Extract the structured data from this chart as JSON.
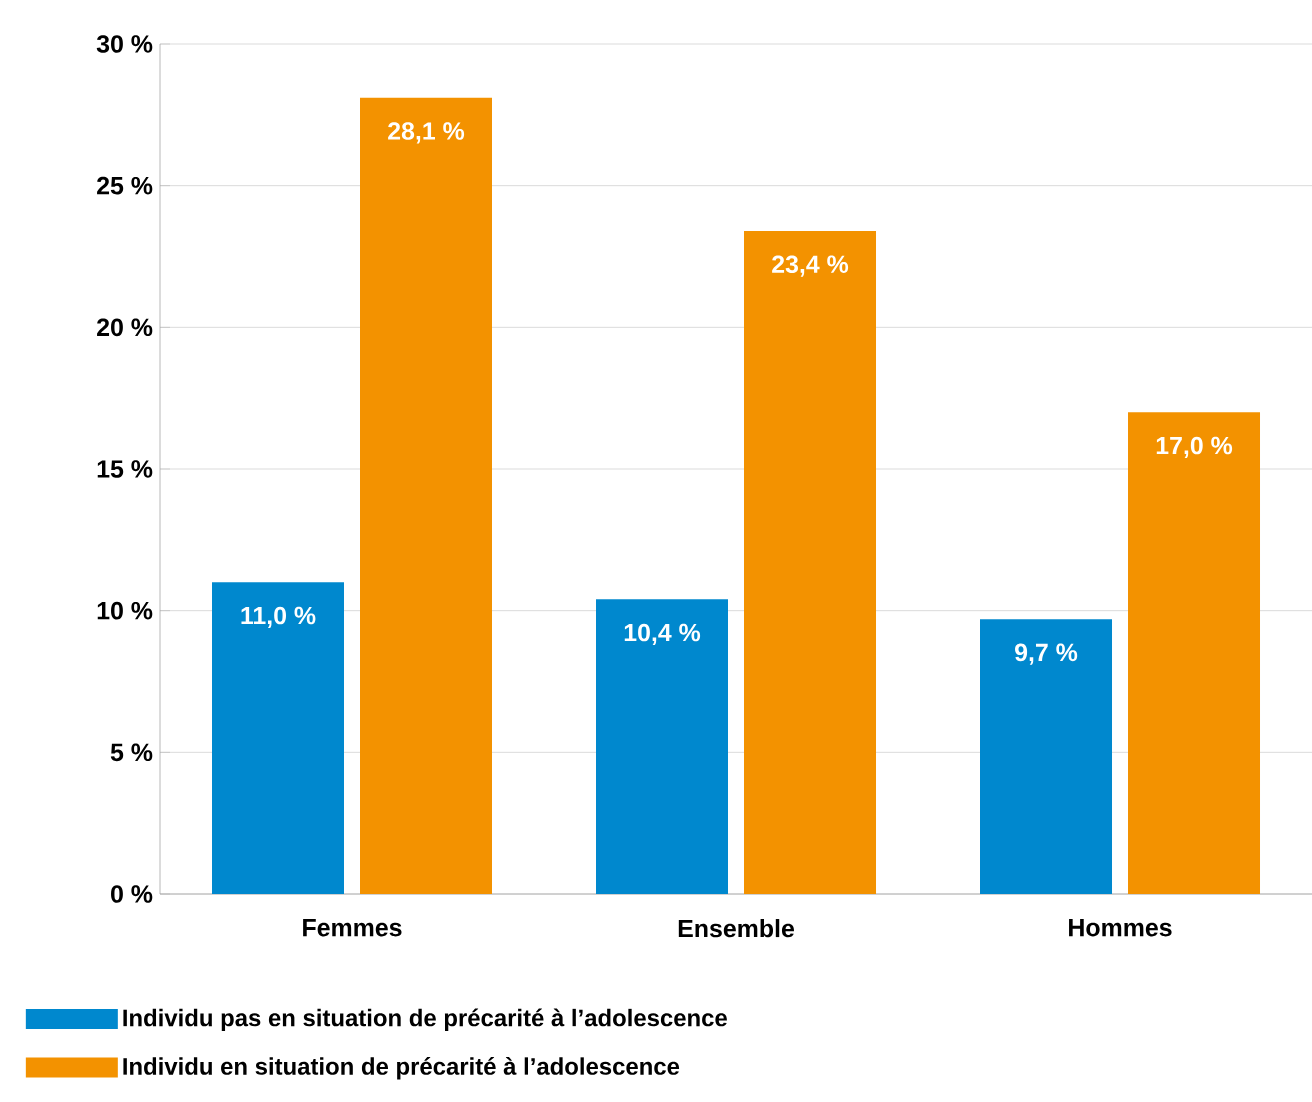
{
  "chart_data": {
    "type": "bar",
    "categories": [
      "Femmes",
      "Ensemble",
      "Hommes"
    ],
    "series": [
      {
        "name": "Individu pas en situation de précarité à l’adolescence",
        "color": "#0088ce",
        "values": [
          11.0,
          10.4,
          9.7
        ],
        "value_labels": [
          "11,0 %",
          "10,4 %",
          "9,7 %"
        ]
      },
      {
        "name": "Individu en situation de précarité à l’adolescence",
        "color": "#f39200",
        "values": [
          28.1,
          23.4,
          17.0
        ],
        "value_labels": [
          "28,1 %",
          "23,4 %",
          "17,0 %"
        ]
      }
    ],
    "ylim": [
      0,
      30
    ],
    "yticks": [
      {
        "value": 0,
        "label": "0 %"
      },
      {
        "value": 5,
        "label": "5 %"
      },
      {
        "value": 10,
        "label": "10 %"
      },
      {
        "value": 15,
        "label": "15 %"
      },
      {
        "value": 20,
        "label": "20 %"
      },
      {
        "value": 25,
        "label": "25 %"
      },
      {
        "value": 30,
        "label": "30 %"
      }
    ],
    "grid": "y",
    "legend": "bottom left"
  }
}
